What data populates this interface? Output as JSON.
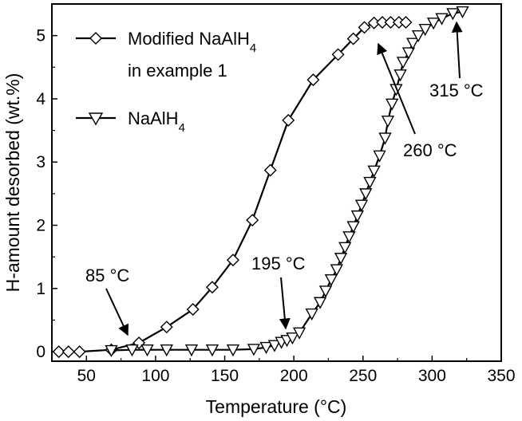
{
  "chart_data": {
    "type": "line",
    "title": "",
    "xlabel": "Temperature (°C)",
    "ylabel": "H-amount desorbed (wt.%)",
    "xlim": [
      25,
      350
    ],
    "ylim": [
      -0.15,
      5.5
    ],
    "xticks": [
      50,
      100,
      150,
      200,
      250,
      300,
      350
    ],
    "yticks": [
      0,
      1,
      2,
      3,
      4,
      5
    ],
    "grid": false,
    "legend_position": "top-left",
    "series": [
      {
        "name_main": "Modified NaAlH",
        "name_sub": "4",
        "name_line2": "in example 1",
        "marker": "diamond",
        "x": [
          30,
          37,
          45,
          68,
          88,
          108,
          127,
          141,
          156,
          170,
          183,
          196,
          214,
          232,
          243,
          251,
          258,
          264,
          270,
          276,
          281
        ],
        "y": [
          0,
          0,
          0,
          0.03,
          0.14,
          0.39,
          0.67,
          1.02,
          1.45,
          2.08,
          2.87,
          3.66,
          4.3,
          4.7,
          4.95,
          5.13,
          5.2,
          5.21,
          5.21,
          5.21,
          5.21
        ]
      },
      {
        "name_main": "NaAlH",
        "name_sub": "4",
        "marker": "triangle-down",
        "x": [
          68,
          83,
          94,
          108,
          126,
          141,
          156,
          171,
          180,
          186,
          191,
          195,
          199,
          204,
          213,
          219,
          223,
          227,
          231,
          234,
          237,
          240,
          243,
          246,
          249,
          252,
          255,
          258,
          262,
          266,
          268,
          271,
          274,
          277,
          279,
          283,
          286,
          290,
          295,
          301,
          307,
          315,
          322
        ],
        "y": [
          0.02,
          0.03,
          0.03,
          0.03,
          0.03,
          0.03,
          0.03,
          0.04,
          0.07,
          0.1,
          0.15,
          0.18,
          0.22,
          0.3,
          0.6,
          0.78,
          0.96,
          1.14,
          1.3,
          1.48,
          1.65,
          1.82,
          1.98,
          2.15,
          2.32,
          2.5,
          2.68,
          2.86,
          3.1,
          3.38,
          3.65,
          3.92,
          4.15,
          4.38,
          4.58,
          4.73,
          4.88,
          5.0,
          5.1,
          5.2,
          5.27,
          5.35,
          5.38
        ]
      }
    ],
    "annotations": [
      {
        "text": "85 °C",
        "arrow_to": [
          84,
          0.08
        ]
      },
      {
        "text": "195 °C",
        "arrow_to": [
          195,
          0.18
        ]
      },
      {
        "text": "260 °C",
        "arrow_to": [
          255,
          5.07
        ]
      },
      {
        "text": "315 °C",
        "arrow_to": [
          316,
          5.3
        ]
      }
    ]
  }
}
